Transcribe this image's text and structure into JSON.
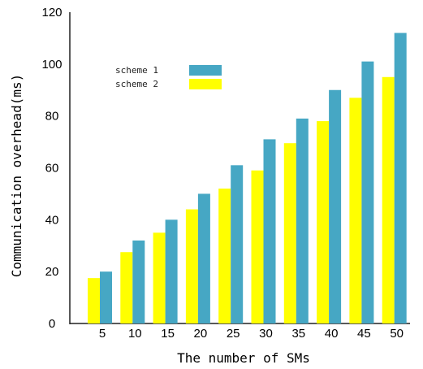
{
  "chart_data": {
    "type": "bar",
    "categories": [
      "5",
      "10",
      "15",
      "20",
      "25",
      "30",
      "35",
      "40",
      "45",
      "50"
    ],
    "series": [
      {
        "name": "scheme 1",
        "color": "#46a7c4",
        "values": [
          20,
          32,
          40,
          50,
          61,
          71,
          79,
          90,
          101,
          112
        ]
      },
      {
        "name": "scheme 2",
        "color": "#ffff00",
        "values": [
          17.5,
          27.5,
          35,
          44,
          52,
          59,
          69.5,
          78,
          87,
          95
        ]
      }
    ],
    "xlabel": "The number of SMs",
    "ylabel": "Communication overhead(ms)",
    "ylim": [
      0,
      120
    ],
    "yticks": [
      "0",
      "20",
      "40",
      "60",
      "80",
      "100",
      "120"
    ],
    "grid": false,
    "legend_position": "top-left"
  }
}
